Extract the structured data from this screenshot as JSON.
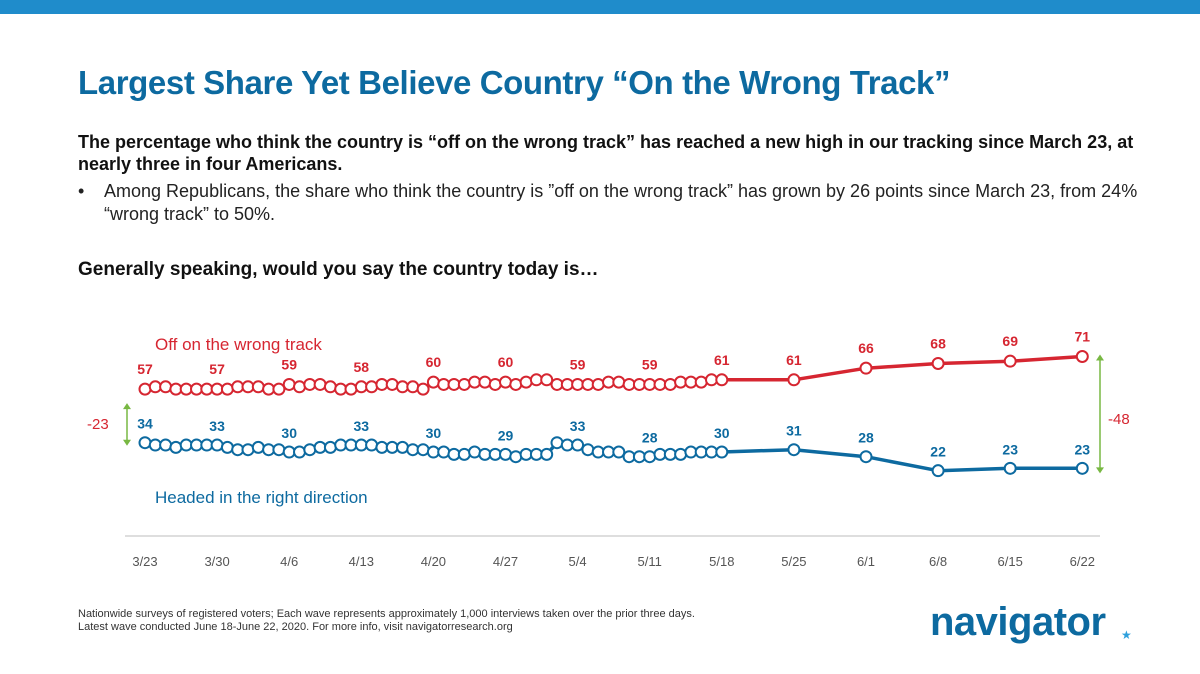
{
  "header": {
    "title": "Largest Share Yet Believe Country “On the Wrong Track”",
    "lead": "The percentage who think the country is “off on the wrong track” has reached a new high in our tracking since March 23, at nearly three in four Americans.",
    "bullet_symbol": "•",
    "bullet": "Among Republicans, the share who think the country is ”off on the wrong track” has grown by 26 points since March 23, from 24% “wrong track” to 50%.",
    "question": "Generally speaking, would you say the country today is…"
  },
  "colors": {
    "accent": "#0d6aa0",
    "topbar": "#1f8ccb",
    "wrong_track": "#d62631",
    "right_direction": "#0d6aa0",
    "gap_arrow": "#78b843"
  },
  "chart_data": {
    "type": "line",
    "x": [
      "3/23",
      "3/24",
      "3/25",
      "3/26",
      "3/27",
      "3/28",
      "3/29",
      "3/30",
      "3/31",
      "4/1",
      "4/2",
      "4/3",
      "4/4",
      "4/5",
      "4/6",
      "4/7",
      "4/8",
      "4/9",
      "4/10",
      "4/11",
      "4/12",
      "4/13",
      "4/14",
      "4/15",
      "4/16",
      "4/17",
      "4/18",
      "4/19",
      "4/20",
      "4/21",
      "4/22",
      "4/23",
      "4/24",
      "4/25",
      "4/26",
      "4/27",
      "4/28",
      "4/29",
      "4/30",
      "5/1",
      "5/2",
      "5/3",
      "5/4",
      "5/5",
      "5/6",
      "5/7",
      "5/8",
      "5/9",
      "5/10",
      "5/11",
      "5/12",
      "5/13",
      "5/14",
      "5/15",
      "5/16",
      "5/17",
      "5/18",
      "5/25",
      "6/1",
      "6/8",
      "6/15",
      "6/22"
    ],
    "x_tick_labels": [
      "3/23",
      "3/30",
      "4/6",
      "4/13",
      "4/20",
      "4/27",
      "5/4",
      "5/11",
      "5/18",
      "5/25",
      "6/1",
      "6/8",
      "6/15",
      "6/22"
    ],
    "series": [
      {
        "name": "Off on the wrong track",
        "color": "#d62631",
        "values": [
          57,
          58,
          58,
          57,
          57,
          57,
          57,
          57,
          57,
          58,
          58,
          58,
          57,
          57,
          59,
          58,
          59,
          59,
          58,
          57,
          57,
          58,
          58,
          59,
          59,
          58,
          58,
          57,
          60,
          59,
          59,
          59,
          60,
          60,
          59,
          60,
          59,
          60,
          61,
          61,
          59,
          59,
          59,
          59,
          59,
          60,
          60,
          59,
          59,
          59,
          59,
          59,
          60,
          60,
          60,
          61,
          61,
          61,
          66,
          68,
          69,
          71
        ]
      },
      {
        "name": "Headed in the right direction",
        "color": "#0d6aa0",
        "values": [
          34,
          33,
          33,
          32,
          33,
          33,
          33,
          33,
          32,
          31,
          31,
          32,
          31,
          31,
          30,
          30,
          31,
          32,
          32,
          33,
          33,
          33,
          33,
          32,
          32,
          32,
          31,
          31,
          30,
          30,
          29,
          29,
          30,
          29,
          29,
          29,
          28,
          29,
          29,
          29,
          34,
          33,
          33,
          31,
          30,
          30,
          30,
          28,
          28,
          28,
          29,
          29,
          29,
          30,
          30,
          30,
          30,
          31,
          28,
          22,
          23,
          23
        ]
      }
    ],
    "labels": {
      "wrong": [
        {
          "x": "3/23",
          "v": "57"
        },
        {
          "x": "3/30",
          "v": "57"
        },
        {
          "x": "4/6",
          "v": "59"
        },
        {
          "x": "4/13",
          "v": "58"
        },
        {
          "x": "4/20",
          "v": "60"
        },
        {
          "x": "4/27",
          "v": "60"
        },
        {
          "x": "5/4",
          "v": "59"
        },
        {
          "x": "5/11",
          "v": "59"
        },
        {
          "x": "5/18",
          "v": "61"
        },
        {
          "x": "5/25",
          "v": "61"
        },
        {
          "x": "6/1",
          "v": "66"
        },
        {
          "x": "6/8",
          "v": "68"
        },
        {
          "x": "6/15",
          "v": "69"
        },
        {
          "x": "6/22",
          "v": "71"
        }
      ],
      "right": [
        {
          "x": "3/23",
          "v": "34"
        },
        {
          "x": "3/30",
          "v": "33"
        },
        {
          "x": "4/6",
          "v": "30"
        },
        {
          "x": "4/13",
          "v": "33"
        },
        {
          "x": "4/20",
          "v": "30"
        },
        {
          "x": "4/27",
          "v": "29"
        },
        {
          "x": "5/4",
          "v": "33"
        },
        {
          "x": "5/11",
          "v": "28"
        },
        {
          "x": "5/18",
          "v": "30"
        },
        {
          "x": "5/25",
          "v": "31"
        },
        {
          "x": "6/1",
          "v": "28"
        },
        {
          "x": "6/8",
          "v": "22"
        },
        {
          "x": "6/15",
          "v": "23"
        },
        {
          "x": "6/22",
          "v": "23"
        }
      ]
    },
    "gaps": {
      "start": "-23",
      "end": "-48"
    },
    "xlabel": "",
    "ylabel": "",
    "grid": false
  },
  "footer": {
    "note_line1": "Nationwide surveys of registered voters; Each wave represents approximately 1,000 interviews taken over the prior three days.",
    "note_line2": "Latest wave conducted June 18-June 22, 2020. For more info, visit navigatorresearch.org",
    "logo": "navigator",
    "logo_mark": "★"
  }
}
